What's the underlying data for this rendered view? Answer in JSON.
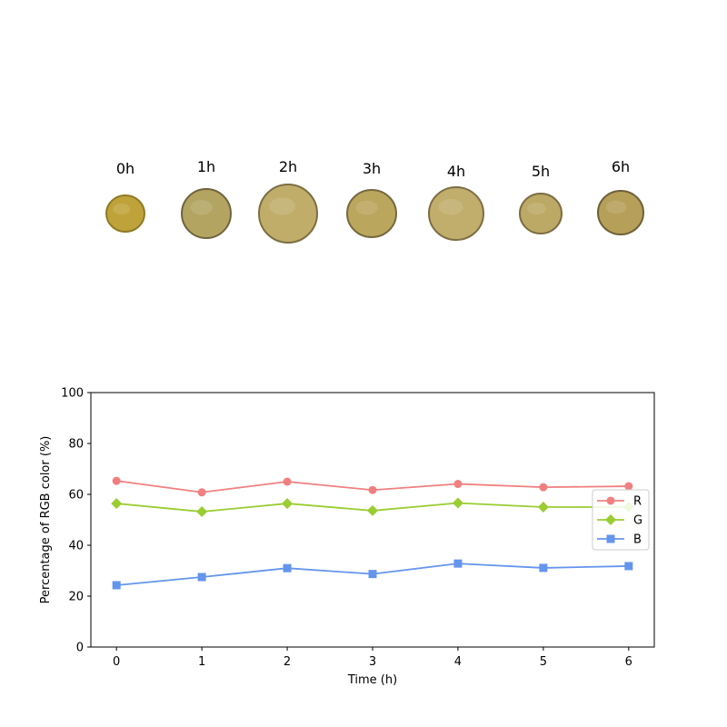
{
  "samples": {
    "labels": [
      "0h",
      "1h",
      "2h",
      "3h",
      "4h",
      "5h",
      "6h"
    ],
    "fill_colors": [
      "#bfa33a",
      "#b3a461",
      "#c0ad6a",
      "#bba65e",
      "#c1ad6c",
      "#bca965",
      "#b69f58"
    ],
    "edge_colors": [
      "#8f7a24",
      "#6f643e",
      "#7c6f42",
      "#756a3e",
      "#7d6f44",
      "#7c6d42",
      "#6e603a"
    ]
  },
  "chart_data": {
    "type": "line",
    "title": "",
    "xlabel": "Time (h)",
    "ylabel": "Percentage of RGB color (%)",
    "x": [
      0,
      1,
      2,
      3,
      4,
      5,
      6
    ],
    "xlim": [
      -0.3,
      6.3
    ],
    "ylim": [
      0,
      100
    ],
    "xticks": [
      "0",
      "1",
      "2",
      "3",
      "4",
      "5",
      "6"
    ],
    "yticks": [
      "0",
      "20",
      "40",
      "60",
      "80",
      "100"
    ],
    "grid": false,
    "legend_position": "right",
    "series": [
      {
        "name": "R",
        "color": "#f08080",
        "marker": "circle",
        "values": [
          65.3,
          60.8,
          65.0,
          61.7,
          64.1,
          62.8,
          63.2
        ]
      },
      {
        "name": "G",
        "color": "#9acd32",
        "marker": "diamond",
        "values": [
          56.4,
          53.2,
          56.4,
          53.6,
          56.6,
          55.0,
          55.0
        ]
      },
      {
        "name": "B",
        "color": "#6495ed",
        "marker": "square",
        "values": [
          24.3,
          27.5,
          31.0,
          28.7,
          32.8,
          31.1,
          31.8
        ]
      }
    ]
  }
}
